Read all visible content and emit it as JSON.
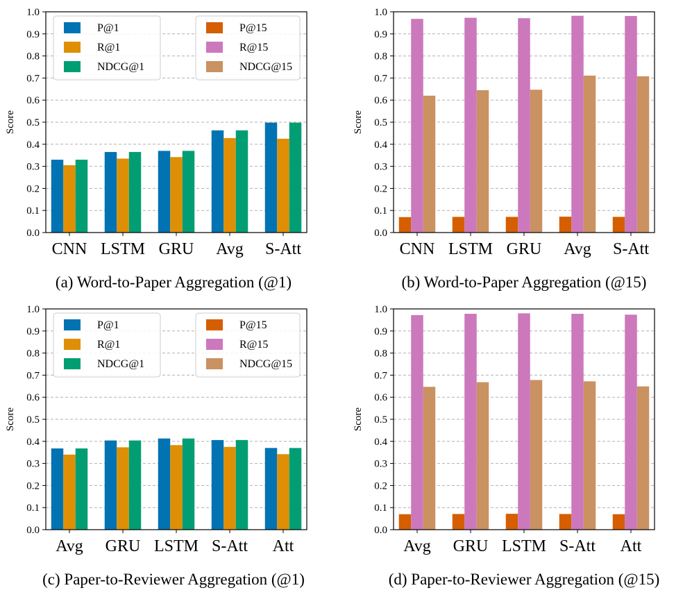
{
  "chart_data": [
    {
      "type": "bar",
      "id": "a",
      "caption": "(a) Word-to-Paper Aggregation (@1)",
      "ylabel": "Score",
      "ylim": [
        0,
        1.0
      ],
      "yticks": [
        "0.0",
        "0.1",
        "0.2",
        "0.3",
        "0.4",
        "0.5",
        "0.6",
        "0.7",
        "0.8",
        "0.9",
        "1.0"
      ],
      "grid": true,
      "categories": [
        "CNN",
        "LSTM",
        "GRU",
        "Avg",
        "S-Att"
      ],
      "legend": [
        {
          "label": "P@1",
          "color": "#0173b2"
        },
        {
          "label": "R@1",
          "color": "#de8f05"
        },
        {
          "label": "NDCG@1",
          "color": "#029e73"
        },
        {
          "label": "P@15",
          "color": "#d55e00"
        },
        {
          "label": "R@15",
          "color": "#cc78bc"
        },
        {
          "label": "NDCG@15",
          "color": "#ca9161"
        }
      ],
      "series": [
        {
          "name": "P@1",
          "color": "#0173b2",
          "values": [
            0.33,
            0.365,
            0.37,
            0.463,
            0.498
          ]
        },
        {
          "name": "R@1",
          "color": "#de8f05",
          "values": [
            0.305,
            0.335,
            0.342,
            0.428,
            0.425
          ]
        },
        {
          "name": "NDCG@1",
          "color": "#029e73",
          "values": [
            0.33,
            0.365,
            0.37,
            0.463,
            0.498
          ]
        }
      ]
    },
    {
      "type": "bar",
      "id": "b",
      "caption": "(b) Word-to-Paper Aggregation (@15)",
      "ylabel": "Score",
      "ylim": [
        0,
        1.0
      ],
      "yticks": [
        "0.0",
        "0.1",
        "0.2",
        "0.3",
        "0.4",
        "0.5",
        "0.6",
        "0.7",
        "0.8",
        "0.9",
        "1.0"
      ],
      "grid": true,
      "categories": [
        "CNN",
        "LSTM",
        "GRU",
        "Avg",
        "S-Att"
      ],
      "series": [
        {
          "name": "P@15",
          "color": "#d55e00",
          "values": [
            0.07,
            0.071,
            0.071,
            0.072,
            0.071
          ]
        },
        {
          "name": "R@15",
          "color": "#cc78bc",
          "values": [
            0.968,
            0.973,
            0.971,
            0.982,
            0.981
          ]
        },
        {
          "name": "NDCG@15",
          "color": "#ca9161",
          "values": [
            0.62,
            0.645,
            0.647,
            0.711,
            0.708
          ]
        }
      ]
    },
    {
      "type": "bar",
      "id": "c",
      "caption": "(c) Paper-to-Reviewer Aggregation (@1)",
      "ylabel": "Score",
      "ylim": [
        0,
        1.0
      ],
      "yticks": [
        "0.0",
        "0.1",
        "0.2",
        "0.3",
        "0.4",
        "0.5",
        "0.6",
        "0.7",
        "0.8",
        "0.9",
        "1.0"
      ],
      "grid": true,
      "categories": [
        "Avg",
        "GRU",
        "LSTM",
        "S-Att",
        "Att"
      ],
      "legend": [
        {
          "label": "P@1",
          "color": "#0173b2"
        },
        {
          "label": "R@1",
          "color": "#de8f05"
        },
        {
          "label": "NDCG@1",
          "color": "#029e73"
        },
        {
          "label": "P@15",
          "color": "#d55e00"
        },
        {
          "label": "R@15",
          "color": "#cc78bc"
        },
        {
          "label": "NDCG@15",
          "color": "#ca9161"
        }
      ],
      "series": [
        {
          "name": "P@1",
          "color": "#0173b2",
          "values": [
            0.368,
            0.404,
            0.413,
            0.406,
            0.37
          ]
        },
        {
          "name": "R@1",
          "color": "#de8f05",
          "values": [
            0.34,
            0.373,
            0.383,
            0.375,
            0.342
          ]
        },
        {
          "name": "NDCG@1",
          "color": "#029e73",
          "values": [
            0.368,
            0.404,
            0.413,
            0.406,
            0.37
          ]
        }
      ]
    },
    {
      "type": "bar",
      "id": "d",
      "caption": "(d) Paper-to-Reviewer Aggregation (@15)",
      "ylabel": "Score",
      "ylim": [
        0,
        1.0
      ],
      "yticks": [
        "0.0",
        "0.1",
        "0.2",
        "0.3",
        "0.4",
        "0.5",
        "0.6",
        "0.7",
        "0.8",
        "0.9",
        "1.0"
      ],
      "grid": true,
      "categories": [
        "Avg",
        "GRU",
        "LSTM",
        "S-Att",
        "Att"
      ],
      "series": [
        {
          "name": "P@15",
          "color": "#d55e00",
          "values": [
            0.07,
            0.071,
            0.072,
            0.071,
            0.07
          ]
        },
        {
          "name": "R@15",
          "color": "#cc78bc",
          "values": [
            0.972,
            0.978,
            0.98,
            0.978,
            0.974
          ]
        },
        {
          "name": "NDCG@15",
          "color": "#ca9161",
          "values": [
            0.647,
            0.668,
            0.678,
            0.672,
            0.649
          ]
        }
      ]
    }
  ]
}
